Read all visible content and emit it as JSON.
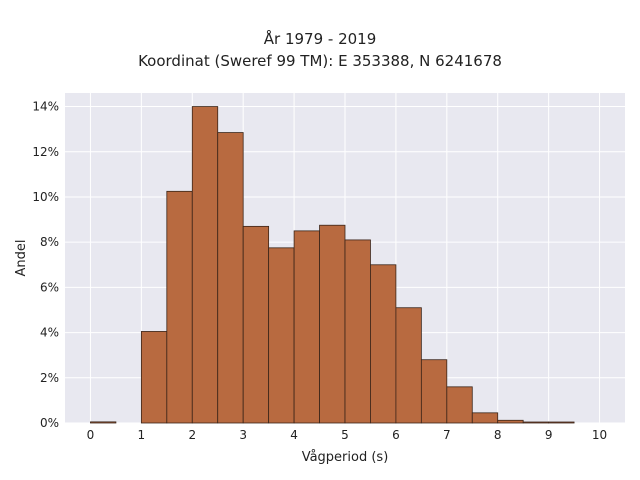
{
  "chart_data": {
    "type": "bar",
    "title": "År 1979 - 2019",
    "subtitle": "Koordinat (Sweref 99 TM): E 353388, N 6241678",
    "xlabel": "Vågperiod (s)",
    "ylabel": "Andel",
    "bin_width": 0.5,
    "bins": [
      {
        "x0": 0.0,
        "value": 0.05
      },
      {
        "x0": 0.5,
        "value": 0.0
      },
      {
        "x0": 1.0,
        "value": 4.05
      },
      {
        "x0": 1.5,
        "value": 10.25
      },
      {
        "x0": 2.0,
        "value": 14.0
      },
      {
        "x0": 2.5,
        "value": 12.85
      },
      {
        "x0": 3.0,
        "value": 8.7
      },
      {
        "x0": 3.5,
        "value": 7.75
      },
      {
        "x0": 4.0,
        "value": 8.5
      },
      {
        "x0": 4.5,
        "value": 8.75
      },
      {
        "x0": 5.0,
        "value": 8.1
      },
      {
        "x0": 5.5,
        "value": 7.0
      },
      {
        "x0": 6.0,
        "value": 5.1
      },
      {
        "x0": 6.5,
        "value": 2.8
      },
      {
        "x0": 7.0,
        "value": 1.6
      },
      {
        "x0": 7.5,
        "value": 0.45
      },
      {
        "x0": 8.0,
        "value": 0.12
      },
      {
        "x0": 8.5,
        "value": 0.04
      },
      {
        "x0": 9.0,
        "value": 0.02
      },
      {
        "x0": 9.5,
        "value": 0.0
      }
    ],
    "xlim": [
      -0.5,
      10.5
    ],
    "ylim": [
      0,
      14.6
    ],
    "xticks": [
      "0",
      "1",
      "2",
      "3",
      "4",
      "5",
      "6",
      "7",
      "8",
      "9",
      "10"
    ],
    "yticks": [
      "0%",
      "2%",
      "4%",
      "6%",
      "8%",
      "10%",
      "12%",
      "14%"
    ],
    "grid": true,
    "colors": {
      "bar_fill": "#b86a40",
      "bar_edge": "#3a2418",
      "plot_bg": "#e8e8f0",
      "grid": "#ffffff"
    }
  }
}
